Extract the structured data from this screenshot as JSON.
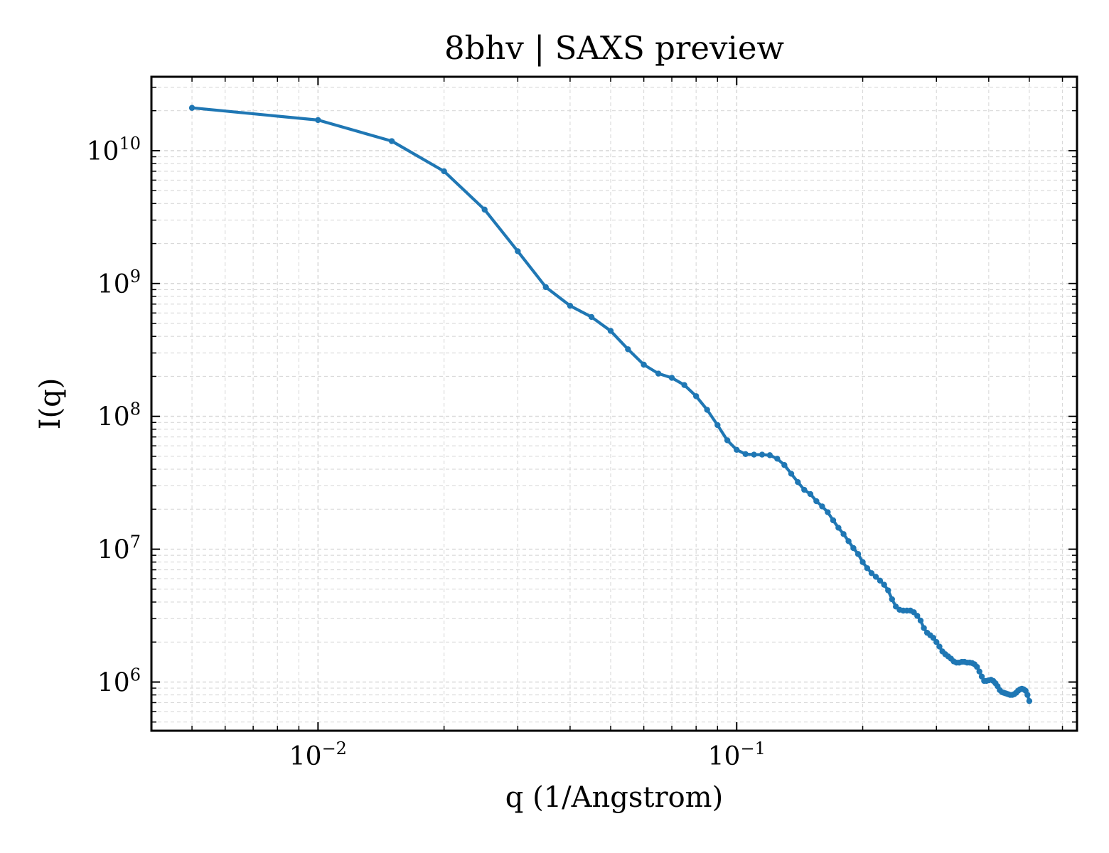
{
  "chart_data": {
    "type": "line",
    "title": "8bhv | SAXS preview",
    "xlabel": "q (1/Angstrom)",
    "ylabel": "I(q)",
    "xscale": "log",
    "yscale": "log",
    "xlim": [
      0.004,
      0.65
    ],
    "ylim": [
      430000,
      36000000000
    ],
    "grid": true,
    "x_ticks": [
      {
        "value": 0.01,
        "base": "10",
        "exp": "−2"
      },
      {
        "value": 0.1,
        "base": "10",
        "exp": "−1"
      }
    ],
    "y_ticks": [
      {
        "value": 1000000,
        "base": "10",
        "exp": "6"
      },
      {
        "value": 10000000,
        "base": "10",
        "exp": "7"
      },
      {
        "value": 100000000,
        "base": "10",
        "exp": "8"
      },
      {
        "value": 1000000000,
        "base": "10",
        "exp": "9"
      },
      {
        "value": 10000000000,
        "base": "10",
        "exp": "10"
      }
    ],
    "colors": {
      "series": "#1f77b4",
      "grid": "#d9d9d9"
    },
    "series": [
      {
        "x": [
          0.005,
          0.01,
          0.015,
          0.02,
          0.025,
          0.03,
          0.035,
          0.04,
          0.045,
          0.05,
          0.055,
          0.06,
          0.065,
          0.07,
          0.075,
          0.08,
          0.085,
          0.09,
          0.095,
          0.1,
          0.105,
          0.11,
          0.115,
          0.12,
          0.125,
          0.13,
          0.135,
          0.14,
          0.145,
          0.15,
          0.155,
          0.16,
          0.165,
          0.17,
          0.175,
          0.18,
          0.185,
          0.19,
          0.195,
          0.2,
          0.205,
          0.21,
          0.215,
          0.22,
          0.225,
          0.23,
          0.235,
          0.24,
          0.245,
          0.25,
          0.255,
          0.26,
          0.265,
          0.27,
          0.275,
          0.28,
          0.285,
          0.29,
          0.295,
          0.3,
          0.305,
          0.31,
          0.315,
          0.32,
          0.325,
          0.33,
          0.335,
          0.34,
          0.345,
          0.35,
          0.355,
          0.36,
          0.365,
          0.37,
          0.375,
          0.38,
          0.385,
          0.39,
          0.395,
          0.4,
          0.405,
          0.41,
          0.415,
          0.42,
          0.425,
          0.43,
          0.435,
          0.44,
          0.445,
          0.45,
          0.455,
          0.46,
          0.465,
          0.47,
          0.475,
          0.48,
          0.485,
          0.49,
          0.495,
          0.5
        ],
        "y": [
          21000000000,
          17000000000,
          11800000000,
          7000000000,
          3600000000,
          1750000000,
          940000000,
          680000000,
          560000000,
          440000000,
          320000000,
          245000000,
          210000000,
          195000000,
          172000000,
          142000000,
          112000000,
          86000000,
          66000000,
          56000000,
          52000000,
          51500000,
          51500000,
          51000000,
          48000000,
          43000000,
          37000000,
          32000000,
          28000000,
          26000000,
          23000000,
          21000000,
          19000000,
          16500000,
          14500000,
          13000000,
          11500000,
          10200000,
          9200000,
          8000000,
          7200000,
          6600000,
          6200000,
          5800000,
          5400000,
          4900000,
          4200000,
          3700000,
          3500000,
          3450000,
          3450000,
          3450000,
          3350000,
          3150000,
          2900000,
          2550000,
          2350000,
          2250000,
          2150000,
          2000000,
          1850000,
          1700000,
          1620000,
          1560000,
          1500000,
          1430000,
          1400000,
          1400000,
          1420000,
          1420000,
          1400000,
          1400000,
          1390000,
          1360000,
          1300000,
          1200000,
          1100000,
          1020000,
          1020000,
          1030000,
          1040000,
          1020000,
          980000,
          930000,
          870000,
          840000,
          830000,
          820000,
          810000,
          800000,
          800000,
          810000,
          830000,
          860000,
          880000,
          890000,
          880000,
          860000,
          800000,
          720000
        ]
      }
    ]
  }
}
